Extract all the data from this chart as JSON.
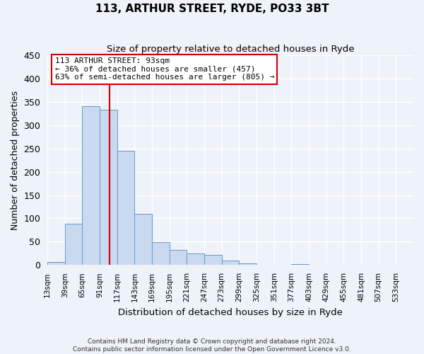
{
  "title": "113, ARTHUR STREET, RYDE, PO33 3BT",
  "subtitle": "Size of property relative to detached houses in Ryde",
  "xlabel": "Distribution of detached houses by size in Ryde",
  "ylabel": "Number of detached properties",
  "bar_color": "#c9d9f0",
  "bar_edge_color": "#6699cc",
  "background_color": "#eef2f9",
  "grid_color": "white",
  "bin_labels": [
    "13sqm",
    "39sqm",
    "65sqm",
    "91sqm",
    "117sqm",
    "143sqm",
    "169sqm",
    "195sqm",
    "221sqm",
    "247sqm",
    "273sqm",
    "299sqm",
    "325sqm",
    "351sqm",
    "377sqm",
    "403sqm",
    "429sqm",
    "455sqm",
    "481sqm",
    "507sqm",
    "533sqm"
  ],
  "bin_edges": [
    0,
    26,
    52,
    78,
    104,
    130,
    156,
    182,
    208,
    234,
    260,
    286,
    312,
    338,
    364,
    390,
    416,
    442,
    468,
    494,
    520,
    546
  ],
  "bar_heights": [
    7,
    88,
    341,
    333,
    245,
    110,
    49,
    32,
    25,
    21,
    9,
    3,
    1,
    0,
    2,
    0,
    0,
    0,
    0,
    1,
    0
  ],
  "vline_x": 93,
  "vline_color": "#cc0000",
  "annotation_title": "113 ARTHUR STREET: 93sqm",
  "annotation_line1": "← 36% of detached houses are smaller (457)",
  "annotation_line2": "63% of semi-detached houses are larger (805) →",
  "annotation_box_color": "white",
  "annotation_box_edge_color": "#cc0000",
  "ylim": [
    0,
    450
  ],
  "yticks": [
    0,
    50,
    100,
    150,
    200,
    250,
    300,
    350,
    400,
    450
  ],
  "footer1": "Contains HM Land Registry data © Crown copyright and database right 2024.",
  "footer2": "Contains public sector information licensed under the Open Government Licence v3.0."
}
